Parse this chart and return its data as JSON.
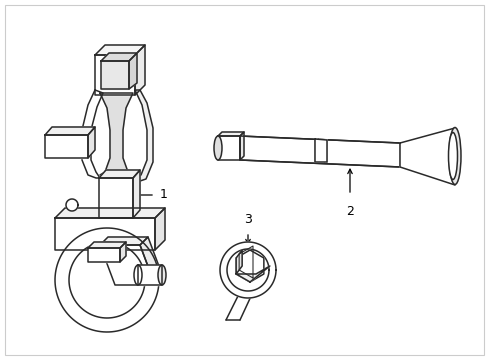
{
  "background_color": "#ffffff",
  "line_color": "#2a2a2a",
  "line_width": 1.1,
  "label_color": "#000000",
  "label_fontsize": 9,
  "fig_width": 4.89,
  "fig_height": 3.6,
  "dpi": 100,
  "border_color": "#cccccc"
}
